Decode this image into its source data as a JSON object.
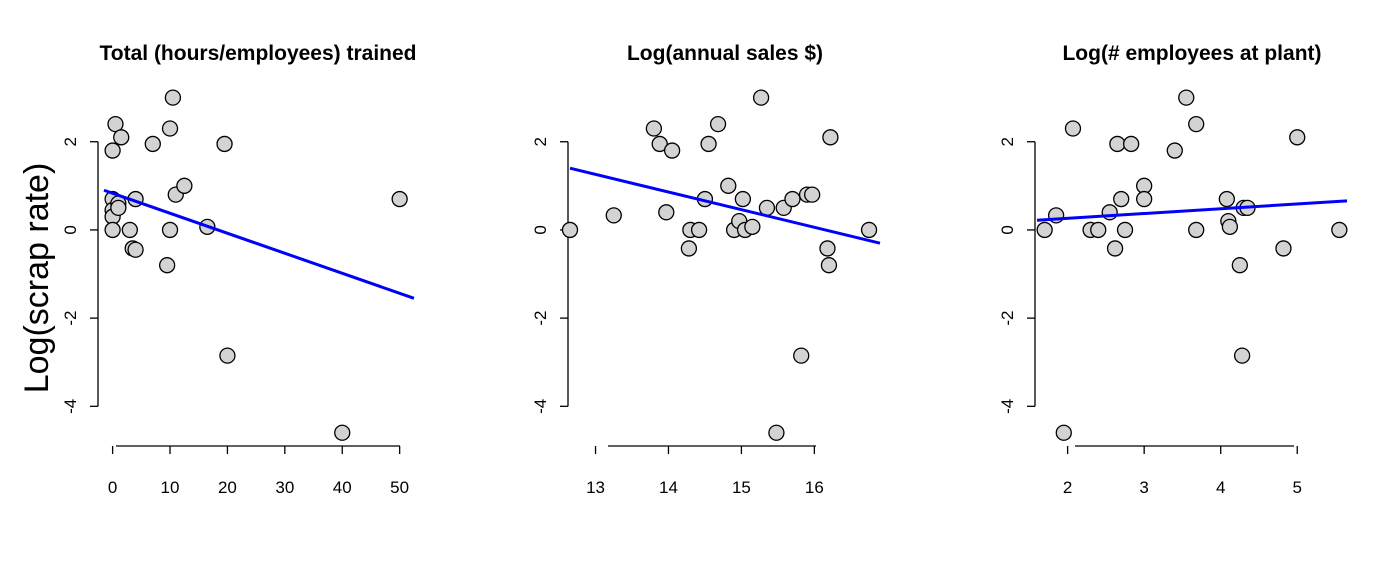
{
  "figure": {
    "ylabel": "Log(scrap rate)"
  },
  "chart_data": [
    {
      "type": "scatter",
      "title": "Total (hours/employees) trained",
      "xlabel": "",
      "ylabel": "Log(scrap rate)",
      "xticks": [
        0,
        10,
        20,
        30,
        40,
        50
      ],
      "yticks": [
        -4,
        -2,
        0,
        2
      ],
      "xlim": [
        -1.5,
        52.5
      ],
      "ylim": [
        -4.9,
        3.4
      ],
      "marker_color": "#d3d3d3",
      "line_color": "#0000ff",
      "x": [
        0,
        0,
        0,
        0,
        0,
        0.5,
        1,
        1,
        1.5,
        3,
        3.5,
        4,
        4,
        7,
        9.5,
        10,
        10,
        10.5,
        11,
        12.5,
        16.5,
        19.5,
        20,
        40,
        50
      ],
      "y": [
        1.8,
        0.7,
        0.45,
        0.3,
        0,
        2.4,
        0.6,
        0.5,
        2.1,
        0,
        -0.42,
        -0.45,
        0.7,
        1.95,
        -0.8,
        2.3,
        0,
        3.0,
        0.8,
        1.0,
        0.07,
        1.95,
        -2.85,
        -4.6,
        0.7
      ],
      "fit": {
        "x": [
          -1.5,
          52.5
        ],
        "y": [
          0.9,
          -1.55
        ]
      }
    },
    {
      "type": "scatter",
      "title": "Log(annual sales $)",
      "xlabel": "",
      "ylabel": "",
      "xticks": [
        13,
        14,
        15,
        16
      ],
      "yticks": [
        -4,
        -2,
        0,
        2
      ],
      "xlim": [
        12.65,
        16.9
      ],
      "ylim": [
        -4.9,
        3.4
      ],
      "marker_color": "#d3d3d3",
      "line_color": "#0000ff",
      "x": [
        12.65,
        13.25,
        13.8,
        13.88,
        13.97,
        14.05,
        14.28,
        14.3,
        14.42,
        14.5,
        14.55,
        14.68,
        14.82,
        14.9,
        14.97,
        15.02,
        15.05,
        15.15,
        15.27,
        15.35,
        15.48,
        15.58,
        15.7,
        15.82,
        15.9,
        15.97,
        16.18,
        16.2,
        16.22,
        16.75
      ],
      "y": [
        0,
        0.33,
        2.3,
        1.95,
        0.4,
        1.8,
        -0.42,
        0,
        0,
        0.7,
        1.95,
        2.4,
        1.0,
        0,
        0.2,
        0.7,
        0,
        0.07,
        3.0,
        0.5,
        -4.6,
        0.5,
        0.7,
        -2.85,
        0.8,
        0.8,
        -0.42,
        -0.8,
        2.1,
        0
      ],
      "fit": {
        "x": [
          12.65,
          16.9
        ],
        "y": [
          1.4,
          -0.3
        ]
      }
    },
    {
      "type": "scatter",
      "title": "Log(# employees at plant)",
      "xlabel": "",
      "ylabel": "",
      "xticks": [
        2,
        3,
        4,
        5
      ],
      "yticks": [
        -4,
        -2,
        0,
        2
      ],
      "xlim": [
        1.6,
        5.65
      ],
      "ylim": [
        -4.9,
        3.4
      ],
      "marker_color": "#d3d3d3",
      "line_color": "#0000ff",
      "x": [
        1.7,
        1.85,
        1.95,
        2.07,
        2.3,
        2.4,
        2.55,
        2.62,
        2.65,
        2.7,
        2.75,
        2.83,
        3.0,
        3.0,
        3.4,
        3.55,
        3.68,
        3.68,
        4.08,
        4.1,
        4.12,
        4.25,
        4.28,
        4.3,
        4.35,
        4.82,
        5.0,
        5.55
      ],
      "y": [
        0,
        0.33,
        -4.6,
        2.3,
        0,
        0,
        0.4,
        -0.42,
        1.95,
        0.7,
        0,
        1.95,
        1.0,
        0.7,
        1.8,
        3.0,
        2.4,
        0,
        0.7,
        0.2,
        0.07,
        -0.8,
        -2.85,
        0.5,
        0.5,
        -0.42,
        2.1,
        0
      ],
      "fit": {
        "x": [
          1.6,
          5.65
        ],
        "y": [
          0.22,
          0.66
        ]
      }
    }
  ]
}
